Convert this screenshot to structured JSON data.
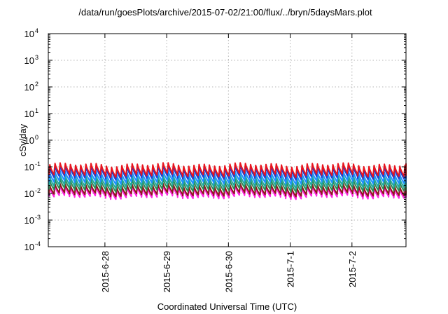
{
  "chart_data": {
    "type": "line",
    "title": "/data/run/goesPlots/archive/2015-07-02/21:00/flux/../bryn/5daysMars.plot",
    "xlabel": "Coordinated Universal Time (UTC)",
    "ylabel": "cSv/day",
    "yscale": "log",
    "ylim": [
      0.0001,
      10000
    ],
    "xlim": [
      "2015-06-27 02:00",
      "2015-07-02 21:00"
    ],
    "grid": true,
    "x_ticks": [
      "2015-6-28",
      "2015-6-29",
      "2015-6-30",
      "2015-7-1",
      "2015-7-2"
    ],
    "y_ticks": [
      {
        "base": "10",
        "exp": "-4"
      },
      {
        "base": "10",
        "exp": "-3"
      },
      {
        "base": "10",
        "exp": "-2"
      },
      {
        "base": "10",
        "exp": "-1"
      },
      {
        "base": "10",
        "exp": "0"
      },
      {
        "base": "10",
        "exp": "1"
      },
      {
        "base": "10",
        "exp": "2"
      },
      {
        "base": "10",
        "exp": "3"
      },
      {
        "base": "10",
        "exp": "4"
      }
    ],
    "series_note": "Periodic sawtooth flux curves, roughly 12 cycles per day",
    "series": [
      {
        "color": "#e8141e",
        "peak": 0.12,
        "trough": 0.05
      },
      {
        "color": "#1f3fd0",
        "peak": 0.095,
        "trough": 0.04
      },
      {
        "color": "#1e90ff",
        "peak": 0.06,
        "trough": 0.027
      },
      {
        "color": "#1fa8a0",
        "peak": 0.042,
        "trough": 0.019
      },
      {
        "color": "#2e8b57",
        "peak": 0.03,
        "trough": 0.014
      },
      {
        "color": "#8b1a1a",
        "peak": 0.02,
        "trough": 0.0095
      },
      {
        "color": "#ff20e0",
        "peak": 0.017,
        "trough": 0.0075
      }
    ]
  }
}
